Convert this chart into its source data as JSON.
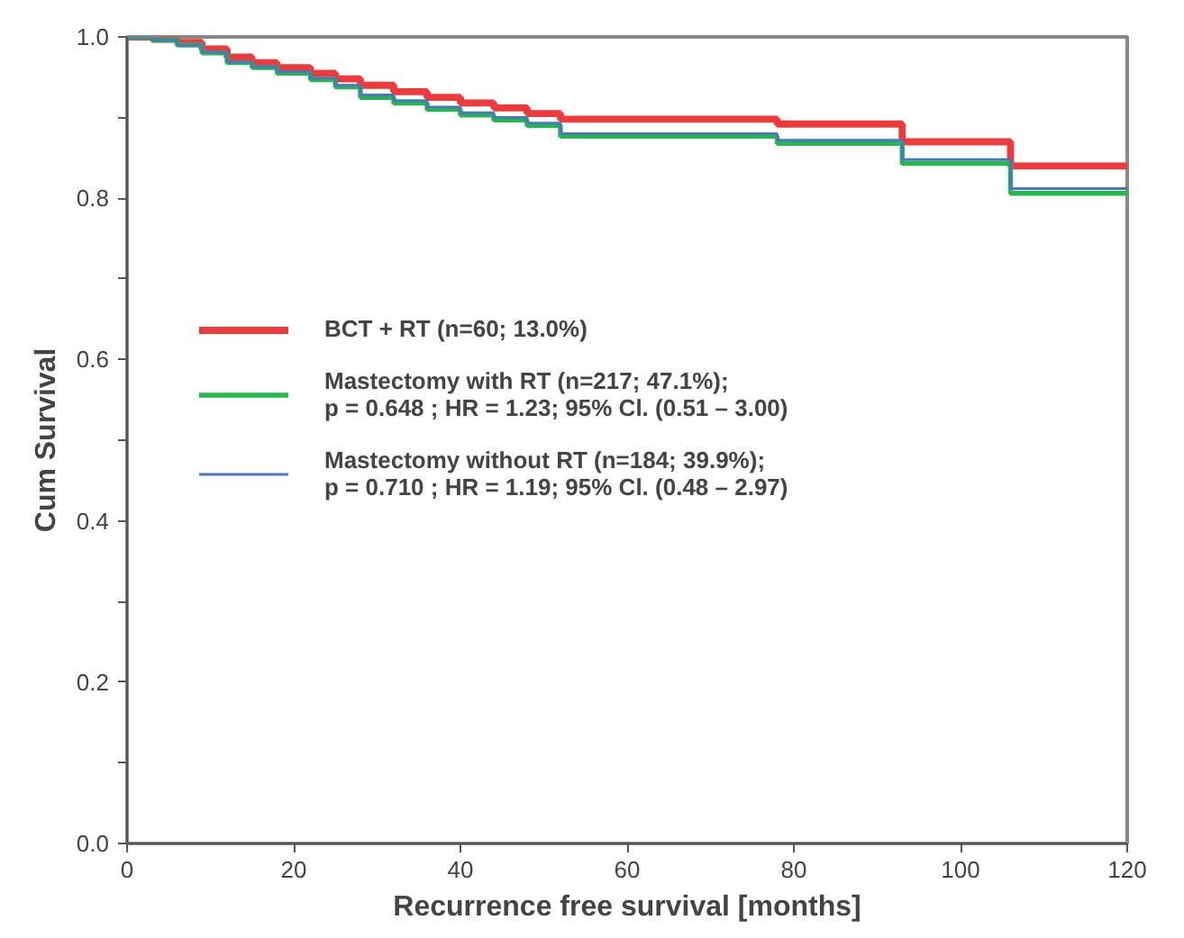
{
  "chart_data": {
    "type": "step",
    "xlabel": "Recurrence free survival [months]",
    "ylabel": "Cum Survival",
    "x": [
      0,
      3,
      6,
      9,
      12,
      15,
      18,
      22,
      25,
      28,
      32,
      36,
      40,
      44,
      48,
      52,
      78,
      93,
      106,
      120
    ],
    "series": [
      {
        "name": "BCT + RT (n=60; 13.0%)",
        "color": "#ee3a3a",
        "values": [
          1,
          0.997,
          0.993,
          0.985,
          0.975,
          0.968,
          0.962,
          0.955,
          0.948,
          0.94,
          0.932,
          0.925,
          0.918,
          0.912,
          0.905,
          0.898,
          0.892,
          0.87,
          0.84,
          0.84
        ]
      },
      {
        "name": "Mastectomy with RT (n=217; 47.1%);\np = 0.648 ; HR = 1.23; 95% Cl. (0.51 – 3.00)",
        "color": "#22b84a",
        "values": [
          1,
          0.996,
          0.99,
          0.98,
          0.968,
          0.962,
          0.955,
          0.947,
          0.938,
          0.925,
          0.918,
          0.91,
          0.903,
          0.897,
          0.89,
          0.877,
          0.868,
          0.843,
          0.806,
          0.806
        ]
      },
      {
        "name": "Mastectomy without RT (n=184; 39.9%);\np = 0.710 ; HR = 1.19; 95% Cl. (0.48 – 2.97)",
        "color": "#4a78c0",
        "values": [
          1,
          0.996,
          0.99,
          0.981,
          0.969,
          0.963,
          0.957,
          0.949,
          0.94,
          0.928,
          0.921,
          0.913,
          0.906,
          0.9,
          0.893,
          0.88,
          0.872,
          0.848,
          0.812,
          0.812
        ]
      }
    ],
    "xlim": [
      0,
      120
    ],
    "ylim": [
      0,
      1
    ],
    "xticks": [
      0,
      20,
      40,
      60,
      80,
      100,
      120
    ],
    "yticks": [
      {
        "value": 0,
        "label": "0.0"
      },
      {
        "value": 0.1,
        "label": null
      },
      {
        "value": 0.2,
        "label": "0.2"
      },
      {
        "value": 0.3,
        "label": null
      },
      {
        "value": 0.4,
        "label": "0.4"
      },
      {
        "value": 0.5,
        "label": null
      },
      {
        "value": 0.6,
        "label": "0.6"
      },
      {
        "value": 0.7,
        "label": null
      },
      {
        "value": 0.8,
        "label": "0.8"
      },
      {
        "value": 0.9,
        "label": null
      },
      {
        "value": 1,
        "label": "1.0"
      }
    ],
    "grid": false,
    "legend": "left",
    "line_style": "solid",
    "marker": "none"
  }
}
